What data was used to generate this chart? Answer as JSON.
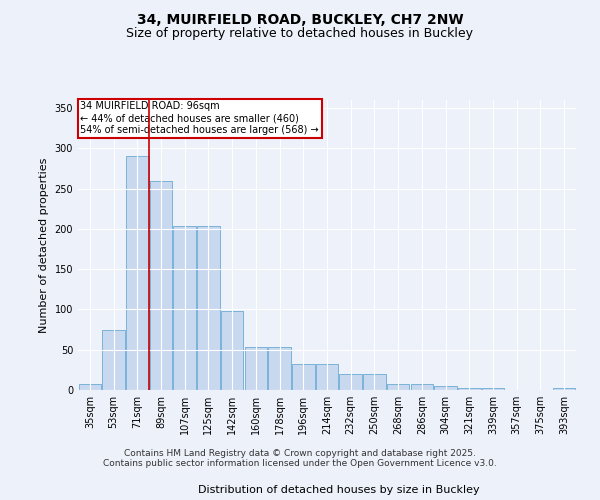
{
  "title_line1": "34, MUIRFIELD ROAD, BUCKLEY, CH7 2NW",
  "title_line2": "Size of property relative to detached houses in Buckley",
  "xlabel": "Distribution of detached houses by size in Buckley",
  "ylabel": "Number of detached properties",
  "categories": [
    "35sqm",
    "53sqm",
    "71sqm",
    "89sqm",
    "107sqm",
    "125sqm",
    "142sqm",
    "160sqm",
    "178sqm",
    "196sqm",
    "214sqm",
    "232sqm",
    "250sqm",
    "268sqm",
    "286sqm",
    "304sqm",
    "321sqm",
    "339sqm",
    "357sqm",
    "375sqm",
    "393sqm"
  ],
  "values": [
    8,
    75,
    290,
    260,
    203,
    203,
    98,
    53,
    53,
    32,
    32,
    20,
    20,
    7,
    7,
    5,
    3,
    3,
    0,
    0,
    3
  ],
  "bar_color": "#c8d8ef",
  "bar_edge_color": "#6aaad4",
  "property_line_x": 2.5,
  "annotation_text": "34 MUIRFIELD ROAD: 96sqm\n← 44% of detached houses are smaller (460)\n54% of semi-detached houses are larger (568) →",
  "annotation_box_color": "#ffffff",
  "annotation_box_edge": "#cc0000",
  "vline_color": "#cc0000",
  "ylim": [
    0,
    360
  ],
  "yticks": [
    0,
    50,
    100,
    150,
    200,
    250,
    300,
    350
  ],
  "background_color": "#edf1fa",
  "footer_line1": "Contains HM Land Registry data © Crown copyright and database right 2025.",
  "footer_line2": "Contains public sector information licensed under the Open Government Licence v3.0.",
  "title_fontsize": 10,
  "subtitle_fontsize": 9,
  "tick_fontsize": 7,
  "label_fontsize": 8,
  "footer_fontsize": 6.5
}
